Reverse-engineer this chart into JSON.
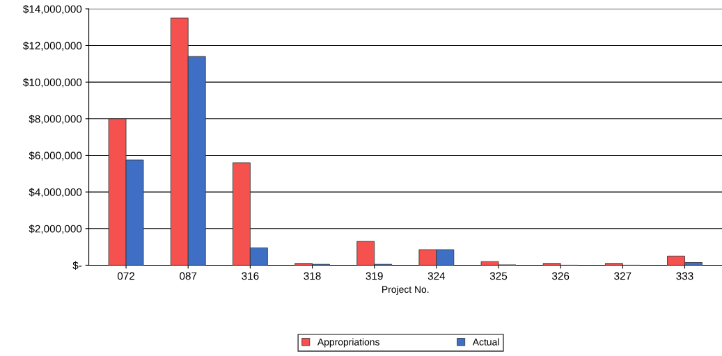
{
  "chart_data": {
    "type": "bar",
    "xlabel": "Project No.",
    "categories": [
      "072",
      "087",
      "316",
      "318",
      "319",
      "324",
      "325",
      "326",
      "327",
      "333"
    ],
    "series": [
      {
        "name": "Appropriations",
        "color": "#f5524f",
        "values": [
          8000000,
          13500000,
          5600000,
          100000,
          1300000,
          850000,
          200000,
          100000,
          100000,
          500000
        ]
      },
      {
        "name": "Actual",
        "color": "#3f6fc4",
        "values": [
          5750000,
          11400000,
          950000,
          50000,
          50000,
          850000,
          20000,
          null,
          null,
          150000
        ]
      }
    ],
    "ylim": [
      0,
      14000000
    ],
    "yticks": [
      {
        "value": 0,
        "label": "$-"
      },
      {
        "value": 2000000,
        "label": "$2,000,000"
      },
      {
        "value": 4000000,
        "label": "$4,000,000"
      },
      {
        "value": 6000000,
        "label": "$6,000,000"
      },
      {
        "value": 8000000,
        "label": "$8,000,000"
      },
      {
        "value": 10000000,
        "label": "$10,000,000"
      },
      {
        "value": 12000000,
        "label": "$12,000,000"
      },
      {
        "value": 14000000,
        "label": "$14,000,000"
      }
    ],
    "grid": "y",
    "legend": "bottom"
  }
}
